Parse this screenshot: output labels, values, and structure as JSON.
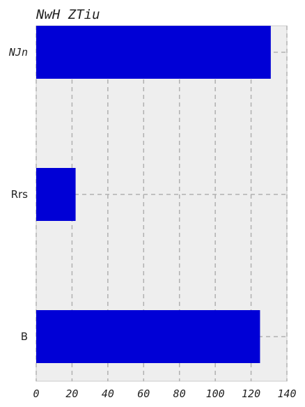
{
  "chart_data": {
    "type": "bar",
    "orientation": "horizontal",
    "title": "NwH  ZTiu",
    "categories": [
      "NJn",
      "Rrs",
      "B"
    ],
    "values": [
      131,
      22,
      125
    ],
    "xlim": [
      0,
      140
    ],
    "xticks": [
      "0",
      "20",
      "40",
      "60",
      "80",
      "100",
      "120",
      "140"
    ],
    "xlabel": "",
    "ylabel": "",
    "grid": true,
    "colors": {
      "bar": "#0000d6",
      "plot_bg": "#eeeeee",
      "grid": "#b0b0b0",
      "frame": "#cccccc"
    }
  }
}
